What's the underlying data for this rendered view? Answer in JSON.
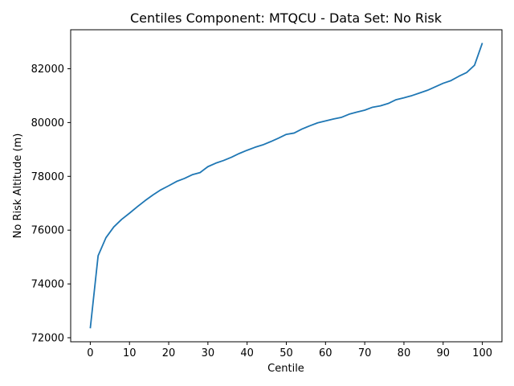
{
  "chart_data": {
    "type": "line",
    "title": "Centiles Component: MTQCU - Data Set: No Risk",
    "xlabel": "Centile",
    "ylabel": "No Risk Altitude (m)",
    "xlim": [
      -5,
      105
    ],
    "ylim": [
      71850,
      83450
    ],
    "xticks": [
      0,
      10,
      20,
      30,
      40,
      50,
      60,
      70,
      80,
      90,
      100
    ],
    "xtick_labels": [
      "0",
      "10",
      "20",
      "30",
      "40",
      "50",
      "60",
      "70",
      "80",
      "90",
      "100"
    ],
    "yticks": [
      72000,
      74000,
      76000,
      78000,
      80000,
      82000
    ],
    "ytick_labels": [
      "72000",
      "74000",
      "76000",
      "78000",
      "80000",
      "82000"
    ],
    "grid": false,
    "color": "#1f77b4",
    "series": [
      {
        "x": [
          0,
          2,
          4,
          6,
          8,
          10,
          12,
          14,
          16,
          18,
          20,
          22,
          24,
          26,
          28,
          30,
          32,
          34,
          36,
          38,
          40,
          42,
          44,
          46,
          48,
          50,
          52,
          54,
          56,
          58,
          60,
          62,
          64,
          66,
          68,
          70,
          72,
          74,
          76,
          78,
          80,
          82,
          84,
          86,
          88,
          90,
          92,
          94,
          96,
          98,
          100
        ],
        "y": [
          72350,
          75050,
          75720,
          76120,
          76400,
          76630,
          76870,
          77100,
          77310,
          77500,
          77650,
          77810,
          77920,
          78060,
          78140,
          78360,
          78490,
          78590,
          78710,
          78850,
          78970,
          79080,
          79170,
          79290,
          79420,
          79560,
          79610,
          79760,
          79880,
          79990,
          80060,
          80130,
          80190,
          80310,
          80390,
          80460,
          80570,
          80620,
          80710,
          80850,
          80920,
          81000,
          81100,
          81200,
          81330,
          81460,
          81560,
          81720,
          81860,
          82130,
          82960
        ]
      }
    ]
  }
}
